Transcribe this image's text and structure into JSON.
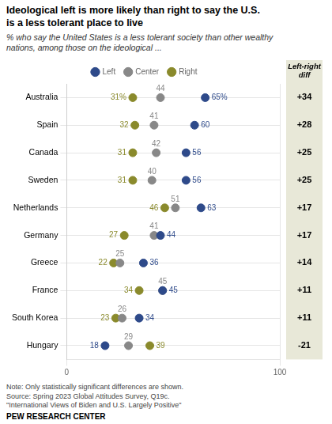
{
  "chart_data": {
    "type": "scatter",
    "title": "Ideological left is more likely than right to say the U.S.\nis a less tolerant place to live",
    "subtitle": "% who say the United States is a less tolerant society than other wealthy\nnations, among those on the ideological ...",
    "categories": [
      "Australia",
      "Spain",
      "Canada",
      "Sweden",
      "Netherlands",
      "Germany",
      "Greece",
      "France",
      "South Korea",
      "Hungary"
    ],
    "series": [
      {
        "name": "Left",
        "color": "#2e4a8a",
        "values": [
          65,
          60,
          56,
          56,
          63,
          44,
          36,
          45,
          34,
          18
        ],
        "value_labels": [
          "65%",
          "60",
          "56",
          "56",
          "63",
          "44",
          "36",
          "45",
          "34",
          "18"
        ]
      },
      {
        "name": "Center",
        "color": "#888888",
        "values": [
          44,
          41,
          42,
          40,
          51,
          41,
          25,
          45,
          26,
          29
        ]
      },
      {
        "name": "Right",
        "color": "#8a8a2c",
        "values": [
          31,
          32,
          31,
          31,
          46,
          27,
          22,
          34,
          23,
          39
        ],
        "value_labels": [
          "31%",
          "32",
          "31",
          "31",
          "46",
          "27",
          "22",
          "34",
          "23",
          "39"
        ]
      }
    ],
    "xlim": [
      0,
      100
    ],
    "xticks": [
      0,
      100
    ],
    "data_labels": true,
    "legend": "top",
    "grid": true,
    "diff": {
      "title": "Left-right\ndiff",
      "labels": [
        "+34",
        "+28",
        "+25",
        "+25",
        "+17",
        "+17",
        "+14",
        "+11",
        "+11",
        "-21"
      ],
      "color": "#e8e8d8"
    },
    "note": "Note: Only statistically significant differences are shown.\nSource: Spring 2023 Global Attitudes Survey, Q19c.\n\"International Views of Biden and U.S. Largely Positive\"",
    "source": "PEW RESEARCH CENTER"
  }
}
